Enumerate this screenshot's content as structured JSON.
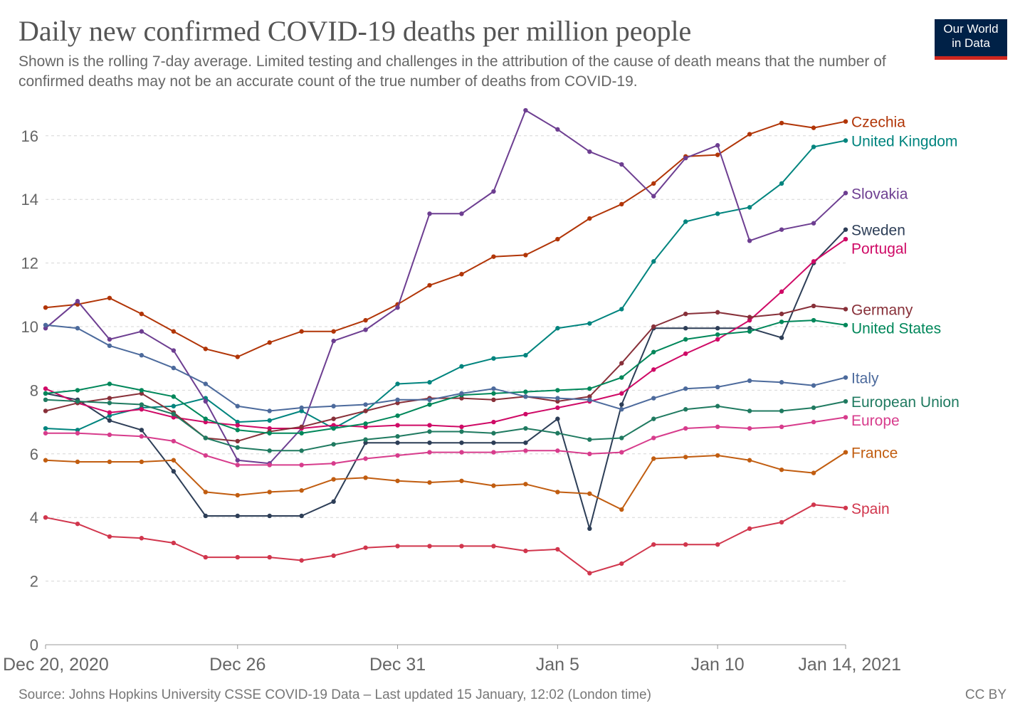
{
  "header": {
    "title": "Daily new confirmed COVID-19 deaths per million people",
    "subtitle": "Shown is the rolling 7-day average. Limited testing and challenges in the attribution of the cause of death means that the number of confirmed deaths may not be an accurate count of the true number of deaths from COVID-19."
  },
  "logo": {
    "line1": "Our World",
    "line2": "in Data"
  },
  "footer": {
    "source": "Source: Johns Hopkins University CSSE COVID-19 Data – Last updated 15 January, 12:02 (London time)",
    "license": "CC BY"
  },
  "chart_data": {
    "type": "line",
    "title": "Daily new confirmed COVID-19 deaths per million people",
    "x": [
      "Dec 20",
      "Dec 21",
      "Dec 22",
      "Dec 23",
      "Dec 24",
      "Dec 25",
      "Dec 26",
      "Dec 27",
      "Dec 28",
      "Dec 29",
      "Dec 30",
      "Dec 31",
      "Jan 1",
      "Jan 2",
      "Jan 3",
      "Jan 4",
      "Jan 5",
      "Jan 6",
      "Jan 7",
      "Jan 8",
      "Jan 9",
      "Jan 10",
      "Jan 11",
      "Jan 12",
      "Jan 13",
      "Jan 14"
    ],
    "x_ticks": [
      {
        "index": 0,
        "label": "Dec 20, 2020"
      },
      {
        "index": 6,
        "label": "Dec 26"
      },
      {
        "index": 11,
        "label": "Dec 31"
      },
      {
        "index": 16,
        "label": "Jan 5"
      },
      {
        "index": 21,
        "label": "Jan 10"
      },
      {
        "index": 25,
        "label": "Jan 14, 2021"
      }
    ],
    "y_ticks": [
      0,
      2,
      4,
      6,
      8,
      10,
      12,
      14,
      16
    ],
    "ylim": [
      0,
      17
    ],
    "grid": true,
    "legend": "right end labels",
    "series": [
      {
        "name": "Czechia",
        "color": "#b13507",
        "values": [
          10.6,
          10.7,
          10.9,
          10.4,
          9.85,
          9.3,
          9.05,
          9.5,
          9.85,
          9.85,
          10.2,
          10.7,
          11.3,
          11.65,
          12.2,
          12.25,
          12.75,
          13.4,
          13.85,
          14.5,
          15.35,
          15.4,
          16.05,
          16.4,
          16.25,
          16.45
        ]
      },
      {
        "name": "United Kingdom",
        "color": "#00847e",
        "values": [
          6.8,
          6.75,
          7.2,
          7.45,
          7.5,
          7.75,
          7.0,
          7.05,
          7.35,
          6.8,
          7.35,
          8.2,
          8.25,
          8.75,
          9.0,
          9.1,
          9.95,
          10.1,
          10.55,
          12.05,
          13.3,
          13.55,
          13.75,
          14.5,
          15.65,
          15.85
        ]
      },
      {
        "name": "Slovakia",
        "color": "#6d3e91",
        "values": [
          9.95,
          10.8,
          9.6,
          9.85,
          9.25,
          7.65,
          5.8,
          5.7,
          6.8,
          9.55,
          9.9,
          10.6,
          13.55,
          13.55,
          14.25,
          16.8,
          16.2,
          15.5,
          15.1,
          14.1,
          15.3,
          15.7,
          12.7,
          13.05,
          13.25,
          14.2
        ]
      },
      {
        "name": "Sweden",
        "color": "#2d3e57",
        "values": [
          7.9,
          7.7,
          7.05,
          6.75,
          5.45,
          4.05,
          4.05,
          4.05,
          4.05,
          4.5,
          6.35,
          6.35,
          6.35,
          6.35,
          6.35,
          6.35,
          7.1,
          3.65,
          7.55,
          9.95,
          9.95,
          9.95,
          9.95,
          9.65,
          12.0,
          13.05
        ]
      },
      {
        "name": "Portugal",
        "color": "#cf0a66",
        "values": [
          8.05,
          7.6,
          7.3,
          7.4,
          7.15,
          7.0,
          6.9,
          6.8,
          6.8,
          6.9,
          6.85,
          6.9,
          6.9,
          6.85,
          7.0,
          7.25,
          7.45,
          7.65,
          7.9,
          8.65,
          9.15,
          9.6,
          10.2,
          11.1,
          12.05,
          12.75
        ]
      },
      {
        "name": "Germany",
        "color": "#883039",
        "values": [
          7.35,
          7.6,
          7.75,
          7.9,
          7.3,
          6.5,
          6.4,
          6.7,
          6.85,
          7.1,
          7.35,
          7.6,
          7.75,
          7.75,
          7.7,
          7.8,
          7.65,
          7.8,
          8.85,
          10.0,
          10.4,
          10.45,
          10.3,
          10.4,
          10.65,
          10.55
        ]
      },
      {
        "name": "United States",
        "color": "#00875a",
        "values": [
          7.9,
          8.0,
          8.2,
          8.0,
          7.8,
          7.1,
          6.75,
          6.65,
          6.65,
          6.8,
          6.95,
          7.2,
          7.55,
          7.85,
          7.9,
          7.95,
          8.0,
          8.05,
          8.4,
          9.2,
          9.6,
          9.75,
          9.85,
          10.15,
          10.2,
          10.05
        ]
      },
      {
        "name": "Italy",
        "color": "#4c6a9c",
        "values": [
          10.05,
          9.95,
          9.4,
          9.1,
          8.7,
          8.2,
          7.5,
          7.35,
          7.45,
          7.5,
          7.55,
          7.7,
          7.7,
          7.9,
          8.05,
          7.8,
          7.75,
          7.7,
          7.4,
          7.75,
          8.05,
          8.1,
          8.3,
          8.25,
          8.15,
          8.4
        ]
      },
      {
        "name": "European Union",
        "color": "#1f7a60",
        "values": [
          7.7,
          7.65,
          7.6,
          7.55,
          7.25,
          6.5,
          6.2,
          6.1,
          6.1,
          6.3,
          6.45,
          6.55,
          6.7,
          6.7,
          6.65,
          6.8,
          6.65,
          6.45,
          6.5,
          7.1,
          7.4,
          7.5,
          7.35,
          7.35,
          7.45,
          7.65
        ]
      },
      {
        "name": "Europe",
        "color": "#d73c8c",
        "values": [
          6.65,
          6.65,
          6.6,
          6.55,
          6.4,
          5.95,
          5.65,
          5.65,
          5.65,
          5.7,
          5.85,
          5.95,
          6.05,
          6.05,
          6.05,
          6.1,
          6.1,
          6.0,
          6.05,
          6.5,
          6.8,
          6.85,
          6.8,
          6.85,
          7.0,
          7.15
        ]
      },
      {
        "name": "France",
        "color": "#c15d10",
        "values": [
          5.8,
          5.75,
          5.75,
          5.75,
          5.8,
          4.8,
          4.7,
          4.8,
          4.85,
          5.2,
          5.25,
          5.15,
          5.1,
          5.15,
          5.0,
          5.05,
          4.8,
          4.75,
          4.25,
          5.85,
          5.9,
          5.95,
          5.8,
          5.5,
          5.4,
          6.05
        ]
      },
      {
        "name": "Spain",
        "color": "#d1364d",
        "values": [
          4.0,
          3.8,
          3.4,
          3.35,
          3.2,
          2.75,
          2.75,
          2.75,
          2.65,
          2.8,
          3.05,
          3.1,
          3.1,
          3.1,
          3.1,
          2.95,
          3.0,
          2.25,
          2.55,
          3.15,
          3.15,
          3.15,
          3.65,
          3.85,
          4.4,
          4.3
        ]
      }
    ]
  }
}
